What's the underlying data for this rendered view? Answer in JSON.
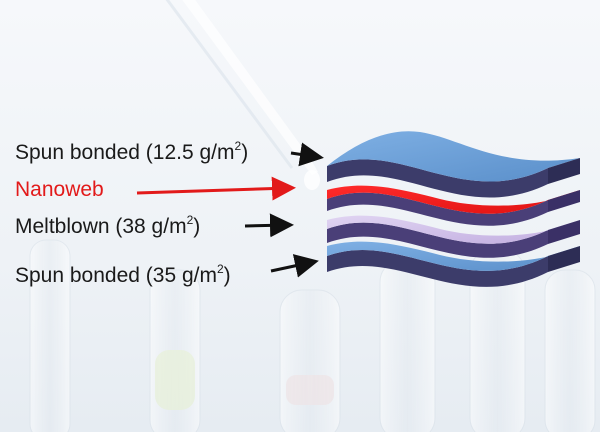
{
  "labels": {
    "spun_top": {
      "text": "Spun bonded (12.5 g/m",
      "sup": "2",
      "close": ")"
    },
    "nanoweb": {
      "text": "Nanoweb"
    },
    "meltblown": {
      "text": "Meltblown (38 g/m",
      "sup": "2",
      "close": ")"
    },
    "spun_bottom": {
      "text": "Spun bonded (35 g/m",
      "sup": "2",
      "close": ")"
    }
  },
  "colors": {
    "spunbond": "#6d9fd6",
    "nanoweb": "#ee1c24",
    "meltblown": "#c9b6e4",
    "label_text": "#1a1a1a",
    "nanoweb_text": "#e21a1a",
    "pointer_arrow": "#111111",
    "nanoweb_arrow": "#e21a1a"
  }
}
